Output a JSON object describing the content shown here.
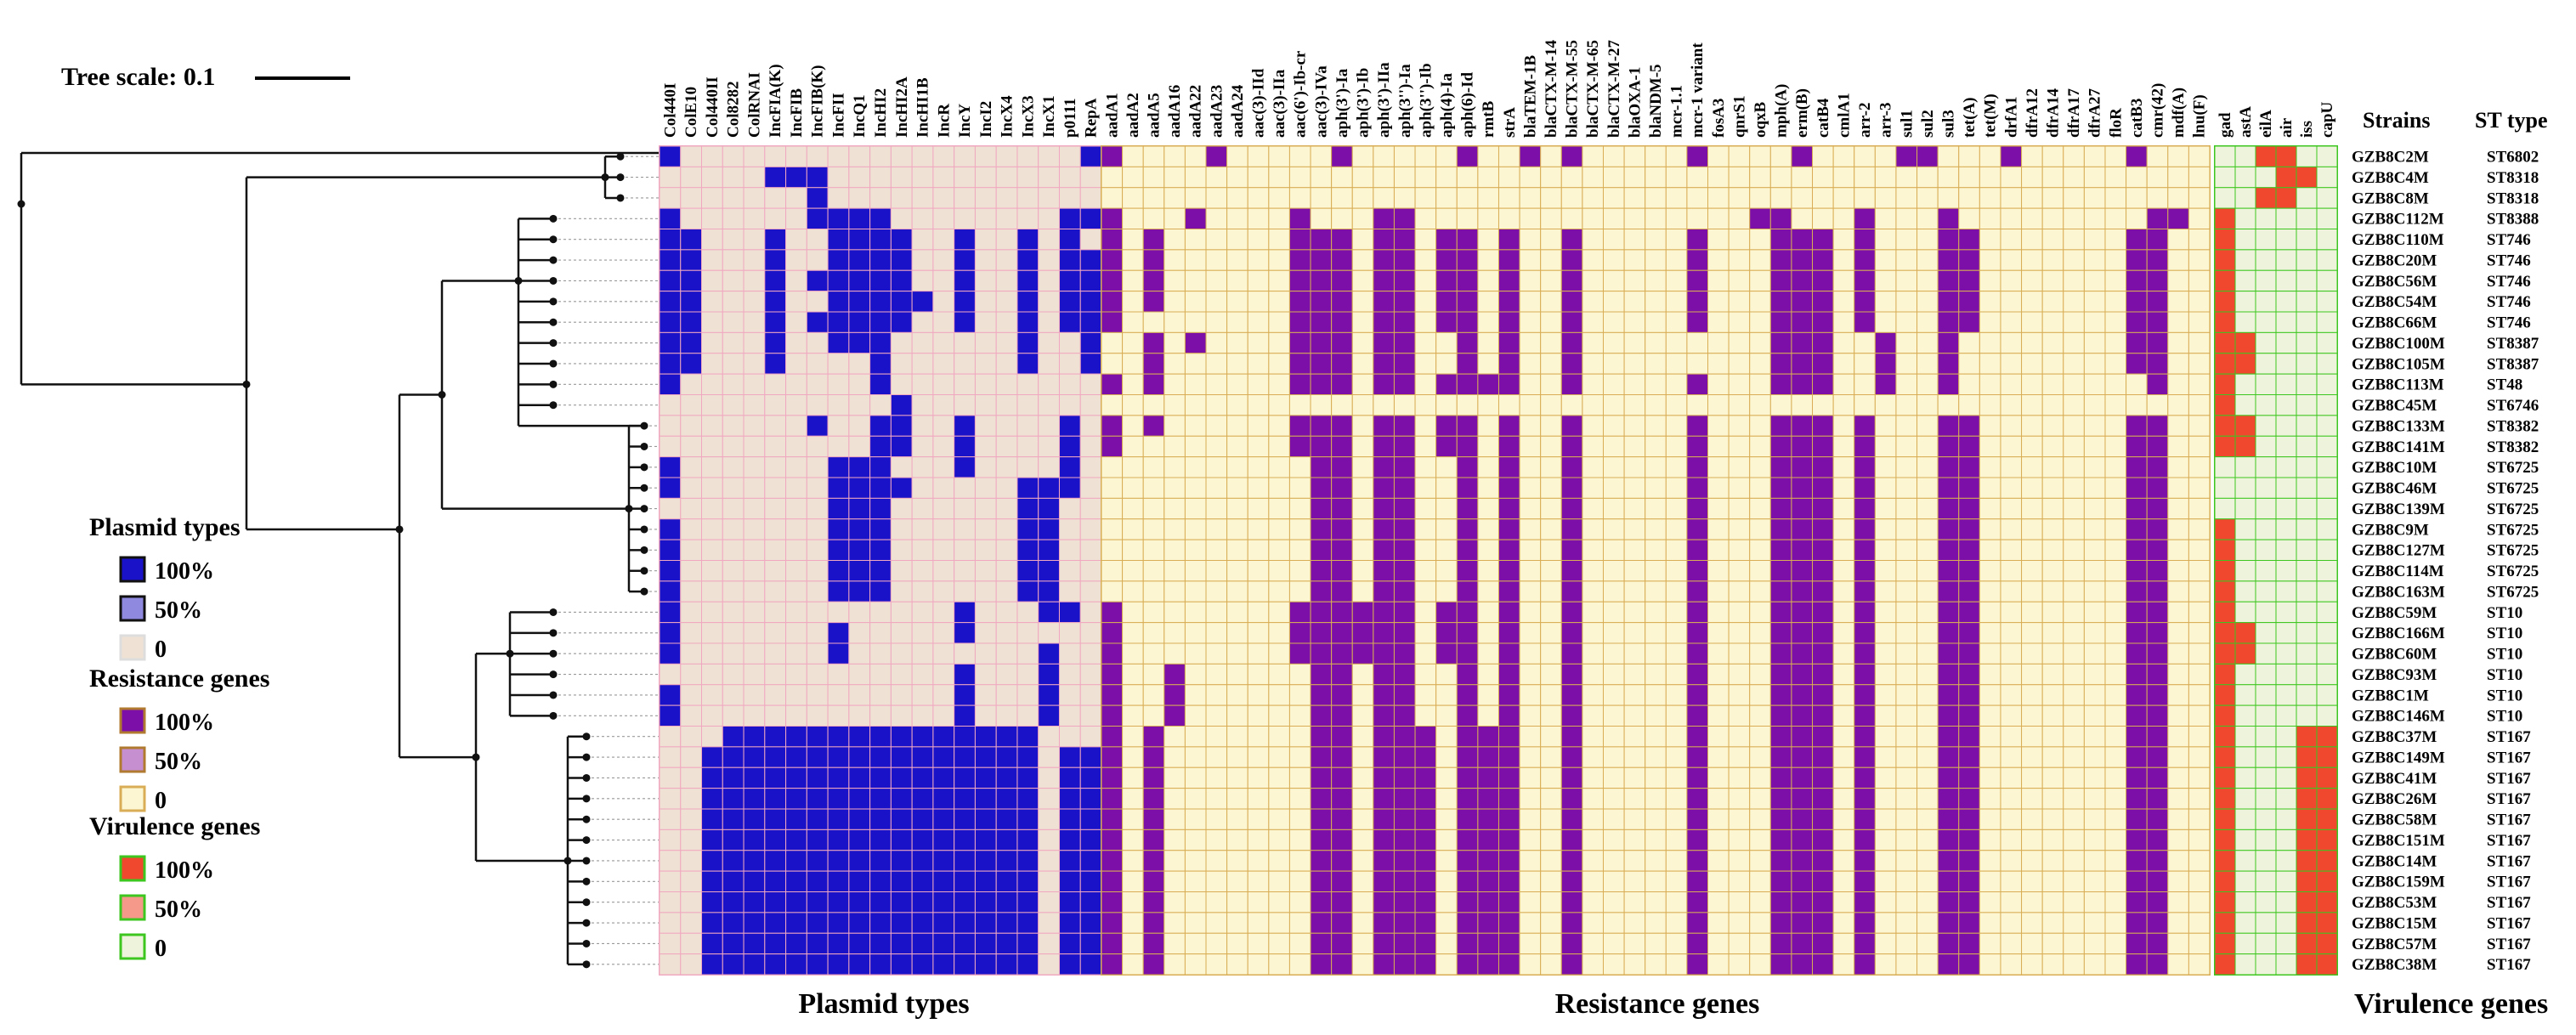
{
  "chart_data": {
    "type": "heatmap",
    "tree_scale_label": "Tree scale: 0.1",
    "headers": {
      "strains": "Strains",
      "st_type": "ST type"
    },
    "strains": [
      "GZB8C2M",
      "GZB8C4M",
      "GZB8C8M",
      "GZB8C112M",
      "GZB8C110M",
      "GZB8C20M",
      "GZB8C56M",
      "GZB8C54M",
      "GZB8C66M",
      "GZB8C100M",
      "GZB8C105M",
      "GZB8C113M",
      "GZB8C45M",
      "GZB8C133M",
      "GZB8C141M",
      "GZB8C10M",
      "GZB8C46M",
      "GZB8C139M",
      "GZB8C9M",
      "GZB8C127M",
      "GZB8C114M",
      "GZB8C163M",
      "GZB8C59M",
      "GZB8C166M",
      "GZB8C60M",
      "GZB8C93M",
      "GZB8C1M",
      "GZB8C146M",
      "GZB8C37M",
      "GZB8C149M",
      "GZB8C41M",
      "GZB8C26M",
      "GZB8C58M",
      "GZB8C151M",
      "GZB8C14M",
      "GZB8C159M",
      "GZB8C53M",
      "GZB8C15M",
      "GZB8C57M",
      "GZB8C38M"
    ],
    "st_types": [
      "ST6802",
      "ST8318",
      "ST8318",
      "ST8388",
      "ST746",
      "ST746",
      "ST746",
      "ST746",
      "ST746",
      "ST8387",
      "ST8387",
      "ST48",
      "ST6746",
      "ST8382",
      "ST8382",
      "ST6725",
      "ST6725",
      "ST6725",
      "ST6725",
      "ST6725",
      "ST6725",
      "ST6725",
      "ST10",
      "ST10",
      "ST10",
      "ST10",
      "ST10",
      "ST10",
      "ST167",
      "ST167",
      "ST167",
      "ST167",
      "ST167",
      "ST167",
      "ST167",
      "ST167",
      "ST167",
      "ST167",
      "ST167",
      "ST167"
    ],
    "groups": [
      {
        "name": "Plasmid types",
        "on_color": "#1a12c8",
        "off_color": "#efe2d4",
        "grid_color": "#f0a8c0",
        "columns": [
          "Col440I",
          "ColE10",
          "Col440II",
          "Col8282",
          "ColRNAI",
          "IncFIA(K)",
          "IncFIB",
          "IncFIB(K)",
          "IncFII",
          "IncQ1",
          "IncHI2",
          "IncHI2A",
          "IncHI1B",
          "IncR",
          "IncY",
          "IncI2",
          "IncX4",
          "IncX3",
          "IncX1",
          "p0111",
          "RepA"
        ],
        "rows": [
          "100000000000000000001",
          "000001110000000000000",
          "000000010000000000000",
          "100000011110000000011",
          "110001001111001001010",
          "110001001111001001011",
          "110001011111001001011",
          "110001001111101001011",
          "110001011111001001011",
          "110001001110000001001",
          "110001000010000001001",
          "100000000010000000000",
          "000000000001000000000",
          "000000010011001000010",
          "000000000011001000010",
          "100000001110001000010",
          "100000001111000001110",
          "000000001110000001100",
          "100000001110000001100",
          "100000001110000001100",
          "100000001110000001100",
          "100000001110000001100",
          "100000000000001000110",
          "100000001000001000000",
          "100000001000000000100",
          "000000000000001000100",
          "100000000000001000100",
          "100000000000001000100",
          "000111111111111111000",
          "001111111111111111011",
          "001111111111111111011",
          "001111111111111111011",
          "001111111111111111011",
          "001111111111111111011",
          "001111111111111111011",
          "001111111111111111011",
          "001111111111111111011",
          "001111111111111111011",
          "001111111111111111011",
          "001111111111111111011"
        ]
      },
      {
        "name": "Resistance genes",
        "on_color": "#7b0fa8",
        "off_color": "#fdf6d2",
        "grid_color": "#d8ad55",
        "columns": [
          "aadA1",
          "aadA2",
          "aadA5",
          "aadA16",
          "aadA22",
          "aadA23",
          "aadA24",
          "aac(3)-IId",
          "aac(3)-IIa",
          "aac(6')-Ib-cr",
          "aac(3)-IVa",
          "aph(3')-Ia",
          "aph(3')-Ib",
          "aph(3')-IIa",
          "aph(3'')-Ia",
          "aph(3'')-Ib",
          "aph(4)-Ia",
          "aph(6)-Id",
          "rmtB",
          "strA",
          "blaTEM-1B",
          "blaCTX-M-14",
          "blaCTX-M-55",
          "blaCTX-M-65",
          "blaCTX-M-27",
          "blaOXA-1",
          "blaNDM-5",
          "mcr-1.1",
          "mcr-1 variant",
          "fosA3",
          "qnrS1",
          "oqxB",
          "mph(A)",
          "erm(B)",
          "catB4",
          "cmlA1",
          "arr-2",
          "arr-3",
          "sul1",
          "sul2",
          "sul3",
          "tet(A)",
          "tet(M)",
          "drfA1",
          "dfrA12",
          "dfrA14",
          "dfrA17",
          "dfrA27",
          "floR",
          "catB3",
          "cmr(42)",
          "mdf(A)",
          "lnu(F)"
        ],
        "rows": [
          "10000100000100000100101000001000010000110001000001000",
          "00000000000000000000000000000000000000000000000000000",
          "00000000000000000000000000000000000000000000000000000",
          "10001000010001100000000000000001100010001000000000110",
          "10100000011101101101001000001000111010001100000001100",
          "10100000011101101101001000001000111010001100000001100",
          "10100000011101101101001000001000111010001100000001100",
          "10100000011101101101001000001000111010001100000001100",
          "10000000011101101101001000001000111010001100000001100",
          "00101000011101100101001000000000111001001000000001100",
          "00100000011101100101001000000000111001001000000001100",
          "10100000011101101111001000001000111001001000000000100",
          "00000000000000000000000000000000000000000000000000000",
          "10100000011101101101001000001000111010001100000001100",
          "10000000011101101101001000001000111010001100000001100",
          "00000000001101100101001000001000111010001100000001100",
          "00000000001101100101001000001000111010001100000001100",
          "00000000001101100101001000001000111010001100000001100",
          "00000000001101100101001000001000111010001100000001100",
          "00000000001101100101001000001000111010001100000001100",
          "00000000001101100101001000001000111010001100000001100",
          "00000000001101100101001000001000111010001100000001100",
          "10000000011111101101001000001000111010001100000001100",
          "10000000011111101101001000001000111010001100000001100",
          "10000000011111101101001000001000111010001100000001100",
          "10010000001101100101001000001000111010001100000001100",
          "10010000001101100101001000001000111010001100000001100",
          "10010000001101100101001000001000111010001100000001100",
          "10100000001101110111001000001000111010001100000001100",
          "10100000001101110111001000001000111010001100000001100",
          "10100000001101110111001000001000111010001100000001100",
          "10100000001101110111001000001000111010001100000001100",
          "10100000001101110111001000001000111010001100000001100",
          "10100000001101110111001000001000111010001100000001100",
          "10100000001101110111001000001000111010001100000001100",
          "10100000001101110111001000001000111010001100000001100",
          "10100000001101110111001000001000111010001100000001100",
          "10100000001101110111001000001000111010001100000001100",
          "10100000001101110111001000001000111010001100000001100",
          "10100000001101110111001000001000111010001100000001100"
        ]
      },
      {
        "name": "Virulence genes",
        "on_color": "#f0482e",
        "off_color": "#eef4dc",
        "grid_color": "#3dc61f",
        "columns": [
          "gad",
          "astA",
          "eilA",
          "air",
          "iss",
          "capU"
        ],
        "rows": [
          "001100",
          "000110",
          "001100",
          "100000",
          "100000",
          "100000",
          "100000",
          "100000",
          "100000",
          "110000",
          "110000",
          "100000",
          "100000",
          "110000",
          "110000",
          "000000",
          "000000",
          "000000",
          "100000",
          "100000",
          "100000",
          "100000",
          "100000",
          "110000",
          "110000",
          "100000",
          "100000",
          "100000",
          "100011",
          "100011",
          "100011",
          "100011",
          "100011",
          "100011",
          "100011",
          "100011",
          "100011",
          "100011",
          "100011",
          "100011"
        ]
      }
    ],
    "legend": [
      {
        "title": "Plasmid types",
        "items": [
          {
            "label": "100%",
            "fill": "#1a12c8",
            "stroke": "#111"
          },
          {
            "label": "50%",
            "fill": "#8f8ae0",
            "stroke": "#111"
          },
          {
            "label": "0",
            "fill": "#efe2d4",
            "stroke": "#ddd"
          }
        ]
      },
      {
        "title": "Resistance genes",
        "items": [
          {
            "label": "100%",
            "fill": "#7b0fa8",
            "stroke": "#b07a30"
          },
          {
            "label": "50%",
            "fill": "#c58fd0",
            "stroke": "#b07a30"
          },
          {
            "label": "0",
            "fill": "#fdf6d2",
            "stroke": "#d8ad55"
          }
        ]
      },
      {
        "title": "Virulence genes",
        "items": [
          {
            "label": "100%",
            "fill": "#f0482e",
            "stroke": "#3dc61f"
          },
          {
            "label": "50%",
            "fill": "#f59a8a",
            "stroke": "#3dc61f"
          },
          {
            "label": "0",
            "fill": "#eef4dc",
            "stroke": "#3dc61f"
          }
        ]
      }
    ]
  }
}
